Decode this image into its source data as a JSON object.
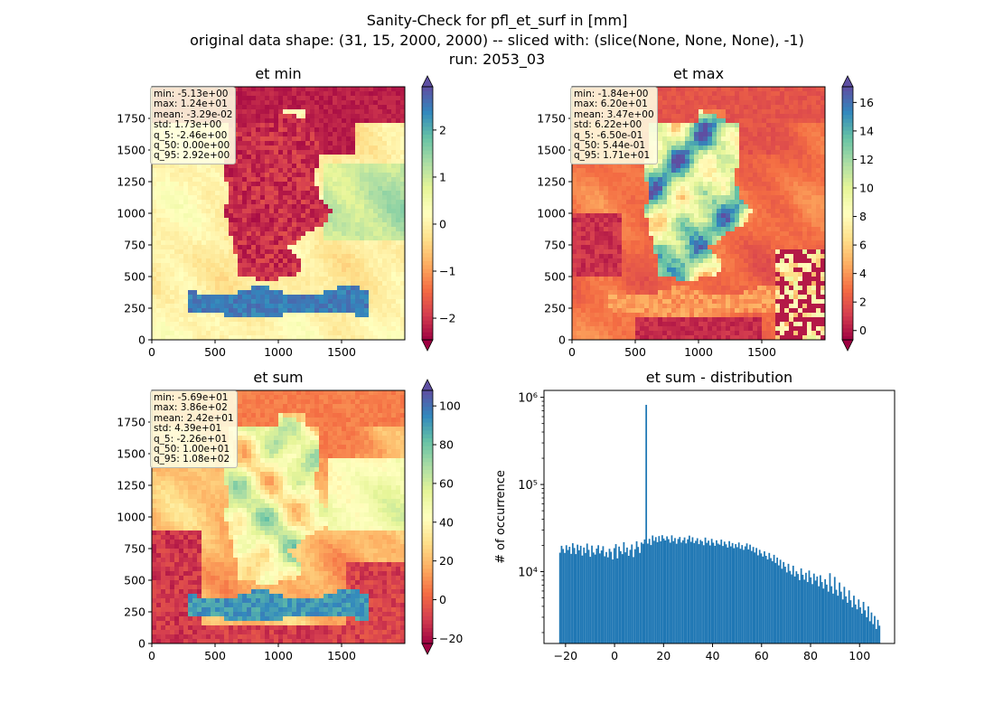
{
  "figure": {
    "title_line1": "Sanity-Check for pfl_et_surf in [mm]",
    "title_line2": "original data shape: (31, 15, 2000, 2000) -- sliced with: (slice(None, None, None), -1)",
    "title_line3": "run: 2053_03"
  },
  "colors": {
    "spectral": [
      "#9e0142",
      "#d53e4f",
      "#f46d43",
      "#fdae61",
      "#fee08b",
      "#ffffbf",
      "#e6f598",
      "#abdda4",
      "#66c2a5",
      "#3288bd",
      "#5e4fa2"
    ],
    "hist_bar": "#1f77b4"
  },
  "chart_data": [
    {
      "type": "heatmap",
      "title": "et min",
      "x_ticks": [
        "0",
        "500",
        "1000",
        "1500"
      ],
      "y_ticks": [
        "0",
        "250",
        "500",
        "750",
        "1000",
        "1250",
        "1500",
        "1750"
      ],
      "xlim": [
        0,
        2000
      ],
      "ylim": [
        0,
        2000
      ],
      "colorbar": {
        "ticks": [
          "−2",
          "−1",
          "0",
          "1",
          "2"
        ],
        "tick_values": [
          -2,
          -1,
          0,
          1,
          2
        ],
        "vmin": -2.46,
        "vmax": 2.92,
        "extend": "both"
      },
      "stats": [
        "min: -5.13e+00",
        "max: 1.24e+01",
        "mean: -3.29e-02",
        "std: 1.73e+00",
        "q_5: -2.46e+00",
        "q_50: 0.00e+00",
        "q_95: 2.92e+00"
      ],
      "pattern": "min"
    },
    {
      "type": "heatmap",
      "title": "et max",
      "x_ticks": [
        "0",
        "500",
        "1000",
        "1500"
      ],
      "y_ticks": [
        "0",
        "250",
        "500",
        "750",
        "1000",
        "1250",
        "1500",
        "1750"
      ],
      "xlim": [
        0,
        2000
      ],
      "ylim": [
        0,
        2000
      ],
      "colorbar": {
        "ticks": [
          "0",
          "2",
          "4",
          "6",
          "8",
          "10",
          "12",
          "14",
          "16"
        ],
        "tick_values": [
          0,
          2,
          4,
          6,
          8,
          10,
          12,
          14,
          16
        ],
        "vmin": -0.65,
        "vmax": 17.1,
        "extend": "both"
      },
      "stats": [
        "min: -1.84e+00",
        "max: 6.20e+01",
        "mean: 3.47e+00",
        "std: 6.22e+00",
        "q_5: -6.50e-01",
        "q_50: 5.44e-01",
        "q_95: 1.71e+01"
      ],
      "pattern": "max"
    },
    {
      "type": "heatmap",
      "title": "et sum",
      "x_ticks": [
        "0",
        "500",
        "1000",
        "1500"
      ],
      "y_ticks": [
        "0",
        "250",
        "500",
        "750",
        "1000",
        "1250",
        "1500",
        "1750"
      ],
      "xlim": [
        0,
        2000
      ],
      "ylim": [
        0,
        2000
      ],
      "colorbar": {
        "ticks": [
          "−20",
          "0",
          "20",
          "40",
          "60",
          "80",
          "100"
        ],
        "tick_values": [
          -20,
          0,
          20,
          40,
          60,
          80,
          100
        ],
        "vmin": -22.6,
        "vmax": 108,
        "extend": "both"
      },
      "stats": [
        "min: -5.69e+01",
        "max: 3.86e+02",
        "mean: 2.42e+01",
        "std: 4.39e+01",
        "q_5: -2.26e+01",
        "q_50: 1.00e+01",
        "q_95: 1.08e+02"
      ],
      "pattern": "sum"
    },
    {
      "type": "bar",
      "title": "et sum - distribution",
      "ylabel": "# of occurrence",
      "xlabel": "",
      "x_ticks": [
        "−20",
        "0",
        "20",
        "40",
        "60",
        "80",
        "100"
      ],
      "x_tick_values": [
        -20,
        0,
        20,
        40,
        60,
        80,
        100
      ],
      "xlim": [
        -28.8,
        114.3
      ],
      "y_scale": "log",
      "ylim": [
        1500,
        1200000
      ],
      "y_ticks": [
        "10⁴",
        "10⁵",
        "10⁶"
      ],
      "y_tick_values": [
        10000,
        100000,
        1000000
      ],
      "bin_start": -22.6,
      "bin_width": 0.652,
      "values": [
        16500,
        19800,
        18200,
        16400,
        20100,
        17700,
        19300,
        16000,
        21200,
        18700,
        15900,
        20400,
        17600,
        19800,
        15300,
        18900,
        16400,
        21000,
        17800,
        14800,
        19900,
        16600,
        15700,
        18400,
        20100,
        16200,
        17500,
        19600,
        15000,
        16800,
        14600,
        18300,
        16900,
        13800,
        18600,
        20700,
        14200,
        19400,
        17200,
        15900,
        21800,
        16700,
        18900,
        15200,
        17800,
        20500,
        14700,
        18100,
        22300,
        19200,
        16400,
        21600,
        20900,
        23400,
        820000,
        21000,
        23800,
        20200,
        26000,
        22600,
        24900,
        21800,
        25600,
        22300,
        26200,
        24000,
        22800,
        25400,
        23600,
        21500,
        26100,
        22400,
        24300,
        20900,
        23700,
        25000,
        21600,
        22900,
        24700,
        21100,
        23500,
        25900,
        22000,
        24800,
        21300,
        22600,
        24200,
        20700,
        23100,
        22300,
        20100,
        24600,
        21400,
        22700,
        20000,
        23800,
        21500,
        19800,
        22900,
        21000,
        20400,
        23300,
        19700,
        22100,
        20600,
        18900,
        22400,
        19500,
        21300,
        18600,
        20700,
        19100,
        21600,
        18300,
        20200,
        17800,
        19500,
        21100,
        18000,
        20400,
        17300,
        19200,
        16600,
        18700,
        15400,
        17800,
        16200,
        14900,
        17100,
        15200,
        13800,
        16400,
        14300,
        13200,
        15600,
        12600,
        14500,
        11800,
        13700,
        10800,
        12900,
        11400,
        9800,
        12300,
        10200,
        9300,
        11700,
        8800,
        10100,
        9400,
        8000,
        10900,
        9200,
        8100,
        9700,
        7600,
        10300,
        8600,
        7200,
        9500,
        7900,
        8800,
        6800,
        9100,
        7600,
        6400,
        8200,
        7100,
        5900,
        9600,
        6800,
        5600,
        8700,
        6200,
        5300,
        7500,
        5900,
        4800,
        6700,
        5200,
        4400,
        6100,
        4700,
        3900,
        5300,
        4200,
        3700,
        4800,
        3900,
        3300,
        4500,
        3600,
        3000,
        4000,
        2700,
        3400,
        2500,
        3100,
        2200,
        2800,
        2400
      ],
      "series": [
        {
          "name": "",
          "color": "#1f77b4"
        }
      ]
    }
  ]
}
